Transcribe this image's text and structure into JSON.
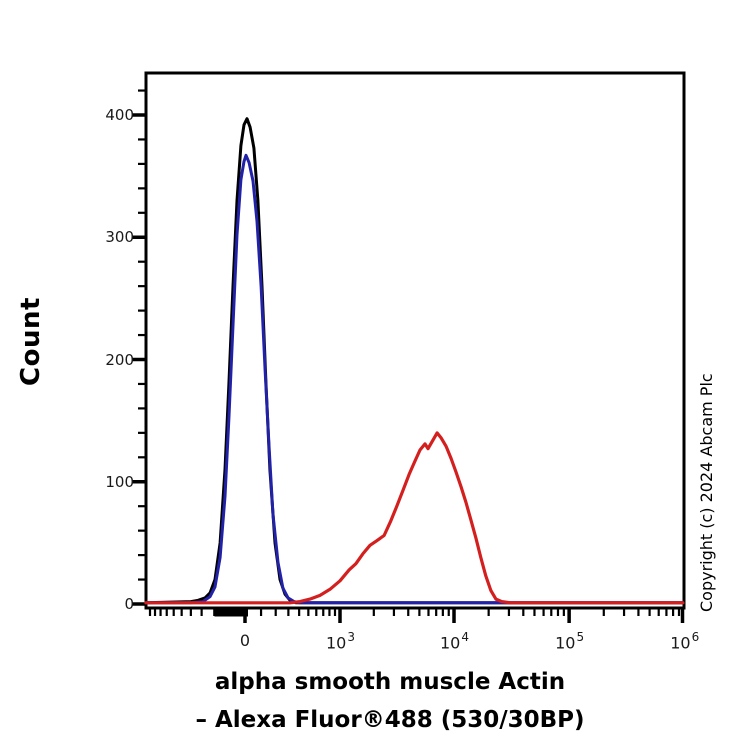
{
  "chart_data": {
    "type": "line",
    "description": "Flow cytometry overlay histogram with three curves (black and blue control peaks near 0, red positive peak near 10^4)",
    "title": "",
    "ylabel": "Count",
    "xlabel": "alpha smooth muscle Actin – Alexa Fluor®488 (530/30BP)",
    "xlabel_line1": "alpha smooth muscle Actin",
    "xlabel_line2": "– Alexa Fluor®488 (530/30BP)",
    "copyright": "Copyright (c) 2024 Abcam Plc",
    "x_scale": "biexponential",
    "xlim_display": [
      -1090,
      1140000
    ],
    "ylim": [
      0,
      435
    ],
    "grid": false,
    "legend": "none",
    "yaxis": {
      "ticks": [
        0,
        100,
        200,
        300,
        400
      ],
      "minor_step": 20
    },
    "xaxis": {
      "ticks": [
        {
          "value": 0,
          "label": "0",
          "exp": ""
        },
        {
          "value": 1000,
          "label": "10",
          "exp": "3"
        },
        {
          "value": 10000,
          "label": "10",
          "exp": "4"
        },
        {
          "value": 100000,
          "label": "10",
          "exp": "5"
        },
        {
          "value": 1000000,
          "label": "10",
          "exp": "6"
        }
      ]
    },
    "series": [
      {
        "name": "black-curve",
        "color": "#000000",
        "width": 3,
        "peak": {
          "x": 12,
          "count": 397
        },
        "points": [
          [
            -1090,
            1
          ],
          [
            -400,
            2
          ],
          [
            -331,
            3
          ],
          [
            -272,
            5
          ],
          [
            -232,
            9
          ],
          [
            -195,
            20
          ],
          [
            -159,
            50
          ],
          [
            -126,
            110
          ],
          [
            -100,
            180
          ],
          [
            -74,
            260
          ],
          [
            -49,
            330
          ],
          [
            -25,
            375
          ],
          [
            -6,
            392
          ],
          [
            12,
            397
          ],
          [
            31,
            390
          ],
          [
            55,
            373
          ],
          [
            80,
            330
          ],
          [
            106,
            260
          ],
          [
            132,
            180
          ],
          [
            159,
            110
          ],
          [
            195,
            50
          ],
          [
            232,
            20
          ],
          [
            272,
            8
          ],
          [
            314,
            3
          ],
          [
            370,
            1
          ],
          [
            1500,
            1
          ],
          [
            973000,
            1
          ]
        ]
      },
      {
        "name": "blue-curve",
        "color": "#2222a8",
        "width": 3,
        "peak": {
          "x": 6,
          "count": 367
        },
        "points": [
          [
            -1090,
            1
          ],
          [
            -400,
            1
          ],
          [
            -289,
            2
          ],
          [
            -232,
            6
          ],
          [
            -195,
            14
          ],
          [
            -159,
            38
          ],
          [
            -126,
            88
          ],
          [
            -100,
            152
          ],
          [
            -74,
            228
          ],
          [
            -49,
            302
          ],
          [
            -25,
            347
          ],
          [
            -6,
            362
          ],
          [
            6,
            367
          ],
          [
            25,
            361
          ],
          [
            49,
            346
          ],
          [
            74,
            313
          ],
          [
            100,
            260
          ],
          [
            126,
            193
          ],
          [
            153,
            128
          ],
          [
            180,
            74
          ],
          [
            217,
            34
          ],
          [
            255,
            13
          ],
          [
            298,
            5
          ],
          [
            352,
            2
          ],
          [
            409,
            1
          ],
          [
            1500,
            1
          ],
          [
            973000,
            1
          ]
        ]
      },
      {
        "name": "red-curve",
        "color": "#d41f1f",
        "width": 3.2,
        "peak": {
          "x": 7130,
          "count": 140
        },
        "points": [
          [
            -1090,
            1
          ],
          [
            -500,
            1
          ],
          [
            -195,
            1
          ],
          [
            93,
            1
          ],
          [
            314,
            1
          ],
          [
            409,
            2
          ],
          [
            520,
            4
          ],
          [
            651,
            7
          ],
          [
            810,
            12
          ],
          [
            1000,
            19
          ],
          [
            1210,
            28
          ],
          [
            1390,
            33
          ],
          [
            1600,
            41
          ],
          [
            1850,
            48
          ],
          [
            2140,
            52
          ],
          [
            2460,
            56
          ],
          [
            2820,
            68
          ],
          [
            3180,
            80
          ],
          [
            3600,
            93
          ],
          [
            4070,
            106
          ],
          [
            4580,
            117
          ],
          [
            5060,
            126
          ],
          [
            5600,
            131
          ],
          [
            5940,
            127
          ],
          [
            6460,
            133
          ],
          [
            7130,
            140
          ],
          [
            7710,
            136
          ],
          [
            8540,
            129
          ],
          [
            9430,
            119
          ],
          [
            10400,
            108
          ],
          [
            11500,
            96
          ],
          [
            12700,
            83
          ],
          [
            14000,
            69
          ],
          [
            15500,
            54
          ],
          [
            17100,
            38
          ],
          [
            18900,
            23
          ],
          [
            20900,
            11
          ],
          [
            23100,
            4
          ],
          [
            26000,
            2
          ],
          [
            30700,
            1
          ],
          [
            973000,
            1
          ]
        ]
      }
    ]
  }
}
